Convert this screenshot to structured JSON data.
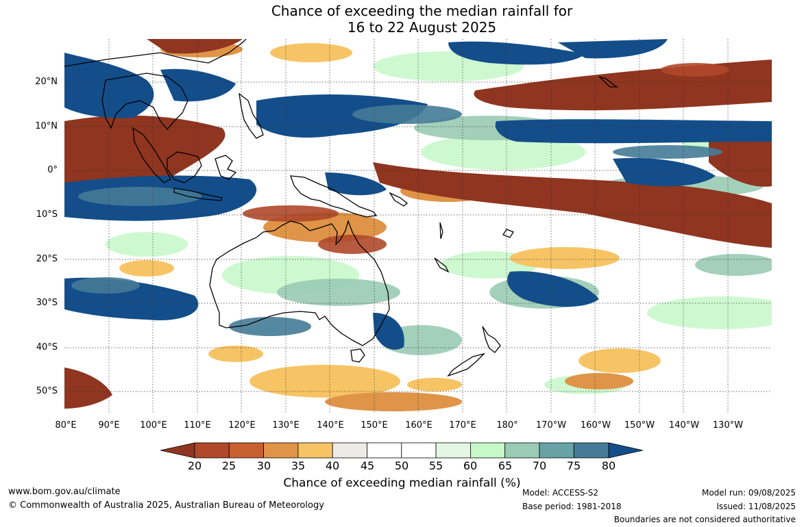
{
  "title_line1": "Chance of exceeding the median rainfall for",
  "title_line2": "16 to 22 August 2025",
  "lat_labels": [
    "20°N",
    "10°N",
    "0°",
    "10°S",
    "20°S",
    "30°S",
    "40°S",
    "50°S"
  ],
  "lon_labels": [
    "80°E",
    "90°E",
    "100°E",
    "110°E",
    "120°E",
    "130°E",
    "140°E",
    "150°E",
    "160°E",
    "170°E",
    "180°",
    "170°W",
    "160°W",
    "150°W",
    "140°W",
    "130°W"
  ],
  "colorbar": {
    "label": "Chance of exceeding median rainfall (%)",
    "ticks": [
      "20",
      "25",
      "30",
      "35",
      "40",
      "45",
      "50",
      "55",
      "60",
      "65",
      "70",
      "75",
      "80"
    ],
    "colors": [
      "#8f3520",
      "#b0482a",
      "#c9602f",
      "#df9448",
      "#f7c465",
      "#ecebe6",
      "#ffffff",
      "#ffffff",
      "#e4f6e4",
      "#c6f8c8",
      "#9acbb4",
      "#67a3a6",
      "#457b97",
      "#134e8a"
    ]
  },
  "footer": {
    "website": "www.bom.gov.au/climate",
    "copyright": "© Commonwealth of Australia 2025, Australian Bureau of Meteorology",
    "model": "Model: ACCESS-S2",
    "base_period": "Base period: 1981-2018",
    "model_run": "Model run: 09/08/2025",
    "issued": "Issued: 11/08/2025",
    "disclaimer": "Boundaries are not considered authoritative"
  }
}
